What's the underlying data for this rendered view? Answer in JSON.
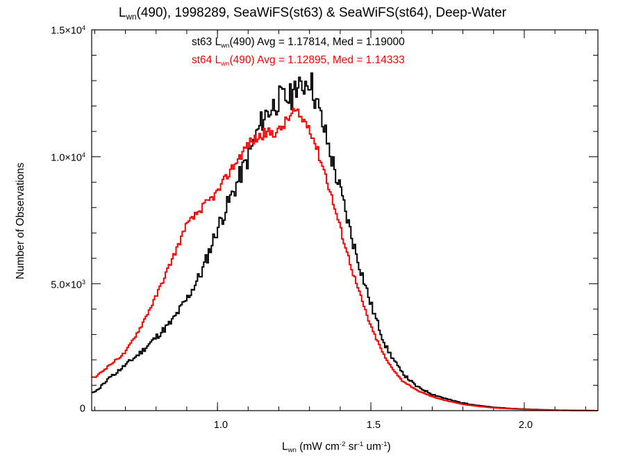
{
  "chart_data": {
    "type": "line",
    "style": "step-histogram",
    "title_parts": {
      "prefix": "L",
      "sub": "wn",
      "rest": "(490), 1998289, SeaWiFS(st63) & SeaWiFS(st64), Deep-Water"
    },
    "xlabel_parts": {
      "prefix": "L",
      "sub": "wn",
      "t1": " (mW cm",
      "sup1": "-2",
      "t2": " sr",
      "sup2": "-1",
      "t3": " um",
      "sup3": "-1",
      "t4": ")"
    },
    "ylabel": "Number of Observations",
    "xlim": [
      0.59,
      2.24
    ],
    "ylim": [
      0,
      15000
    ],
    "x_ticks": [
      "1.0",
      "1.5",
      "2.0"
    ],
    "x_tick_values": [
      1.0,
      1.5,
      2.0
    ],
    "y_tick_labels": [
      {
        "value": 0,
        "mantissa": "0",
        "exp": ""
      },
      {
        "value": 5000,
        "mantissa": "5.0×10",
        "exp": "3"
      },
      {
        "value": 10000,
        "mantissa": "1.0×10",
        "exp": "4"
      },
      {
        "value": 15000,
        "mantissa": "1.5×10",
        "exp": "4"
      }
    ],
    "x_minor_step": 0.1,
    "y_minor_step": 1000,
    "legend": [
      {
        "name": "st63",
        "pre": "st63 L",
        "sub": "wn",
        "post": "(490) Avg = 1.17814, Med = 1.19000",
        "color": "#000000"
      },
      {
        "name": "st64",
        "pre": "st64 L",
        "sub": "wn",
        "post": "(490) Avg = 1.12895, Med = 1.14333",
        "color": "#ff0000"
      }
    ],
    "series": [
      {
        "name": "st63",
        "color": "#000000",
        "x": [
          0.6,
          0.65,
          0.7,
          0.75,
          0.8,
          0.85,
          0.9,
          0.95,
          1.0,
          1.05,
          1.1,
          1.15,
          1.2,
          1.25,
          1.3,
          1.35,
          1.4,
          1.45,
          1.5,
          1.55,
          1.6,
          1.65,
          1.7,
          1.75,
          1.8,
          1.85,
          1.9,
          1.95,
          2.0,
          2.1,
          2.24
        ],
        "y": [
          700,
          1300,
          1800,
          2300,
          2900,
          3500,
          4400,
          5500,
          7200,
          8600,
          10000,
          11600,
          12300,
          12400,
          13200,
          11000,
          8700,
          6300,
          4200,
          2500,
          1500,
          950,
          650,
          450,
          300,
          200,
          130,
          90,
          60,
          20,
          0
        ]
      },
      {
        "name": "st64",
        "color": "#ff0000",
        "x": [
          0.6,
          0.65,
          0.7,
          0.75,
          0.8,
          0.85,
          0.9,
          0.95,
          1.0,
          1.05,
          1.1,
          1.15,
          1.2,
          1.25,
          1.3,
          1.35,
          1.4,
          1.45,
          1.5,
          1.55,
          1.6,
          1.65,
          1.7,
          1.75,
          1.8,
          1.85,
          1.9,
          1.95,
          2.0,
          2.1,
          2.24
        ],
        "y": [
          1300,
          1800,
          2300,
          3300,
          4500,
          5900,
          7300,
          8000,
          8600,
          9600,
          10500,
          10900,
          11000,
          11800,
          11200,
          9400,
          7200,
          5100,
          3300,
          2000,
          1200,
          800,
          550,
          380,
          250,
          170,
          110,
          75,
          50,
          15,
          0
        ]
      }
    ]
  }
}
